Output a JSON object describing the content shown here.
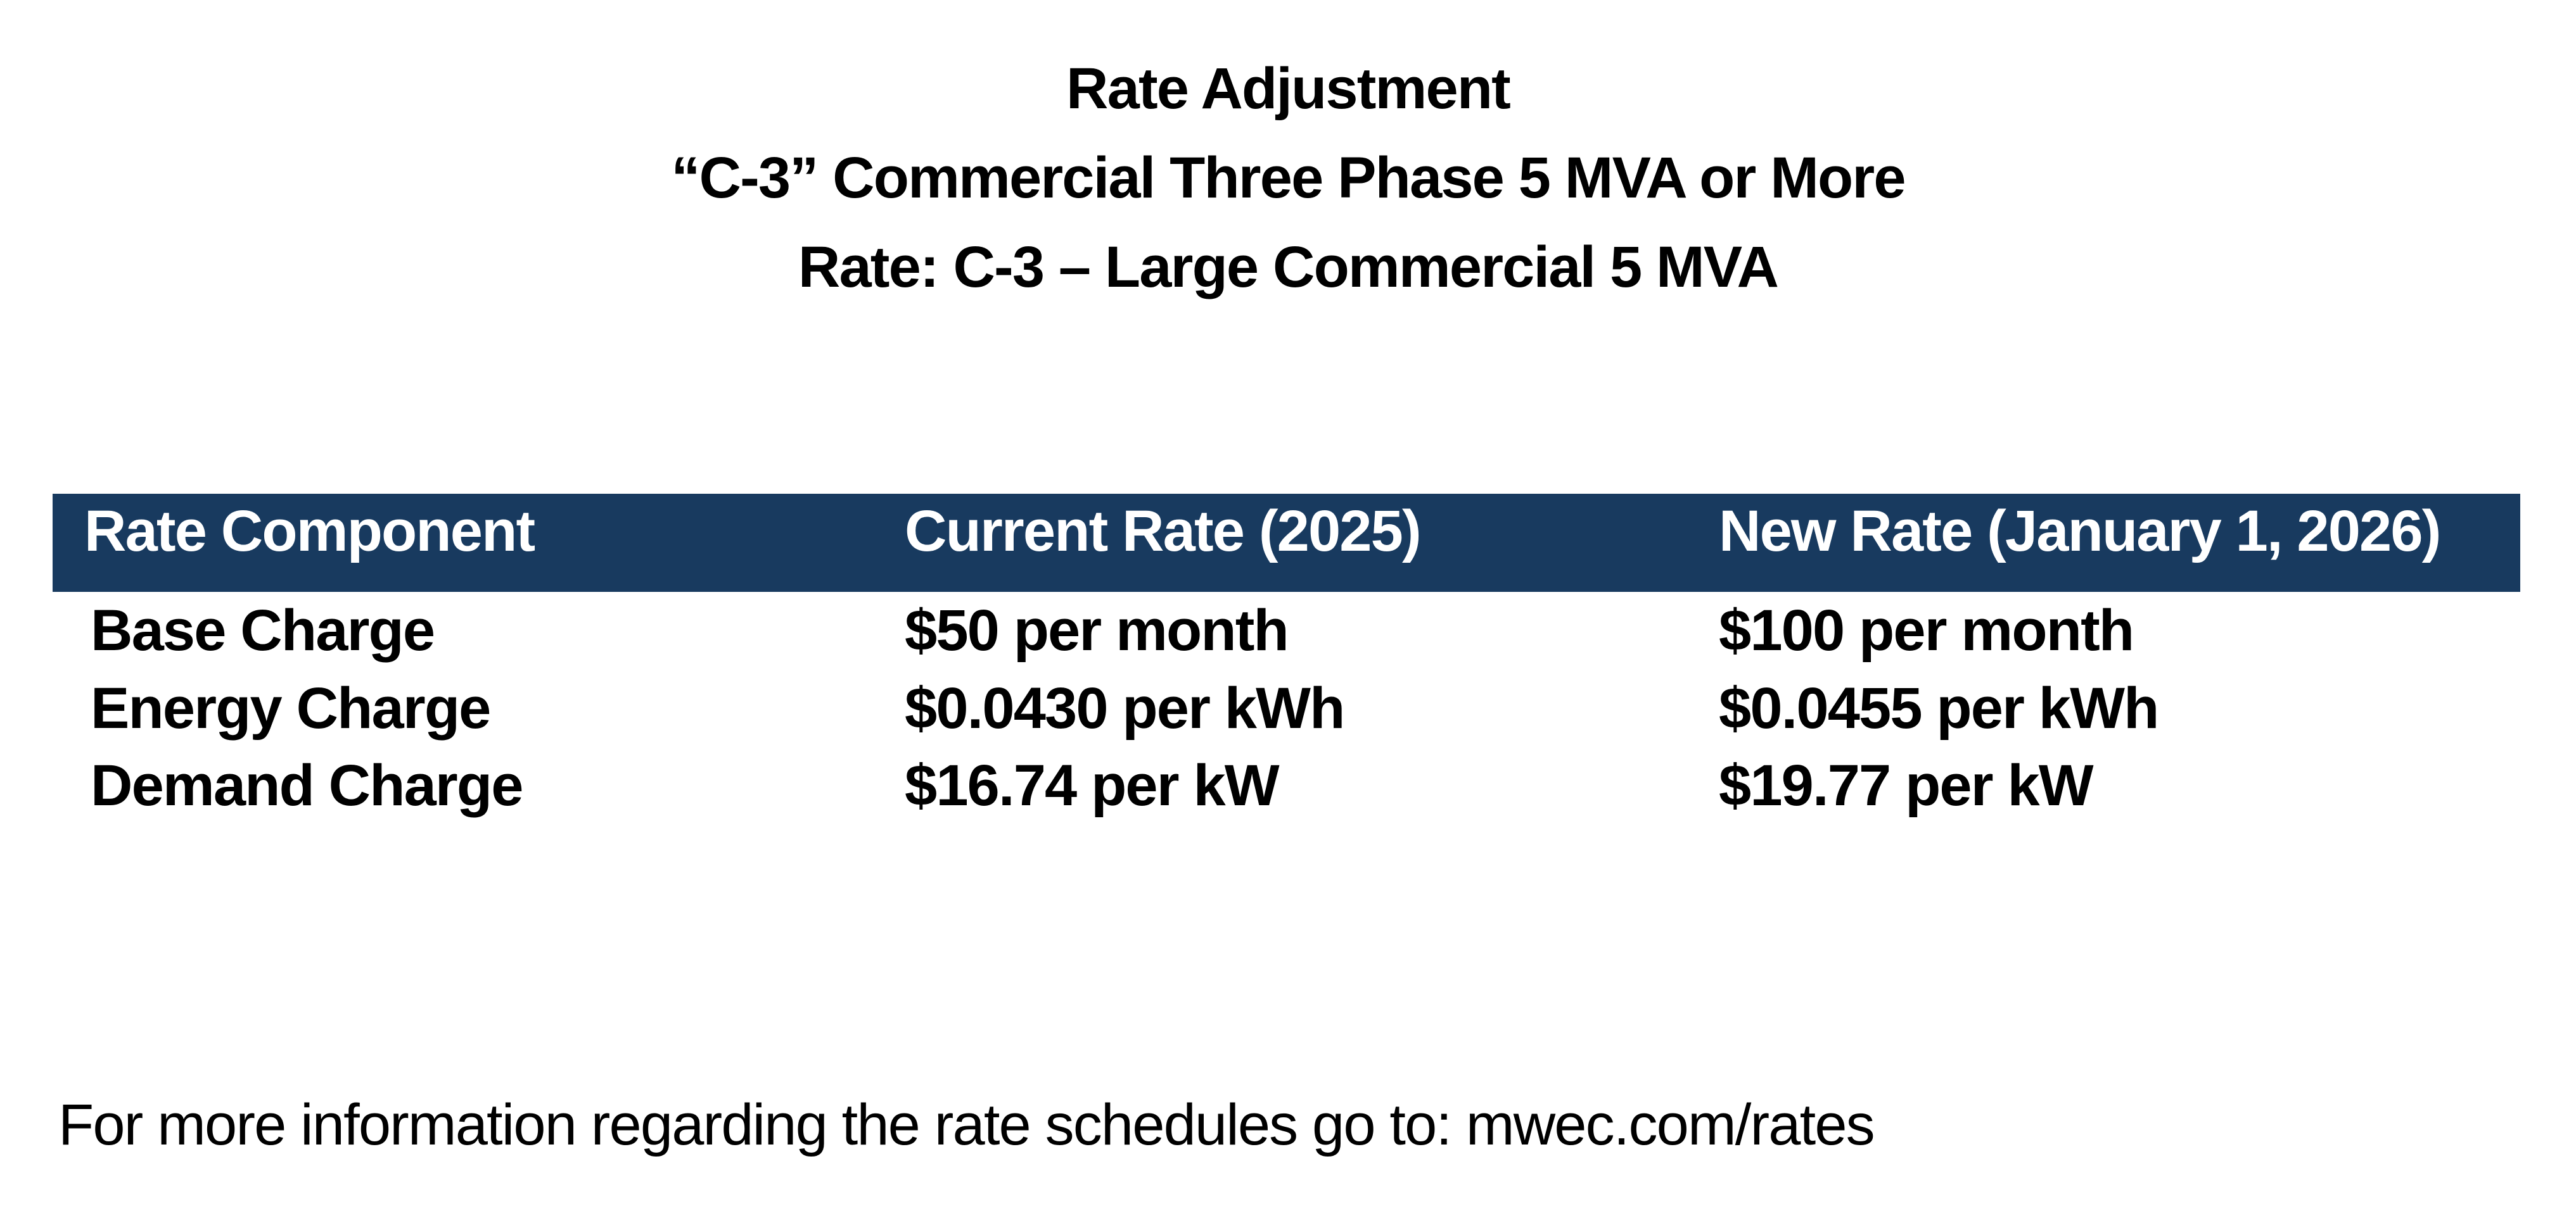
{
  "title": {
    "line1": "Rate Adjustment",
    "line2": "“C-3” Commercial Three Phase 5 MVA or More",
    "line3": "Rate: C-3 – Large Commercial 5 MVA"
  },
  "table": {
    "header_bg_color": "#183A5F",
    "header_text_color": "#FFFFFF",
    "columns": [
      "Rate Component",
      "Current Rate (2025)",
      "New Rate (January 1, 2026)"
    ],
    "rows": [
      {
        "component": "Base Charge",
        "current": "$50 per month",
        "new": "$100 per month"
      },
      {
        "component": "Energy Charge",
        "current": "$0.0430 per kWh",
        "new": "$0.0455 per kWh"
      },
      {
        "component": "Demand Charge",
        "current": "$16.74 per kW",
        "new": "$19.77 per kW"
      }
    ]
  },
  "footer": {
    "text": "For more information regarding the rate schedules go to: mwec.com/rates"
  }
}
